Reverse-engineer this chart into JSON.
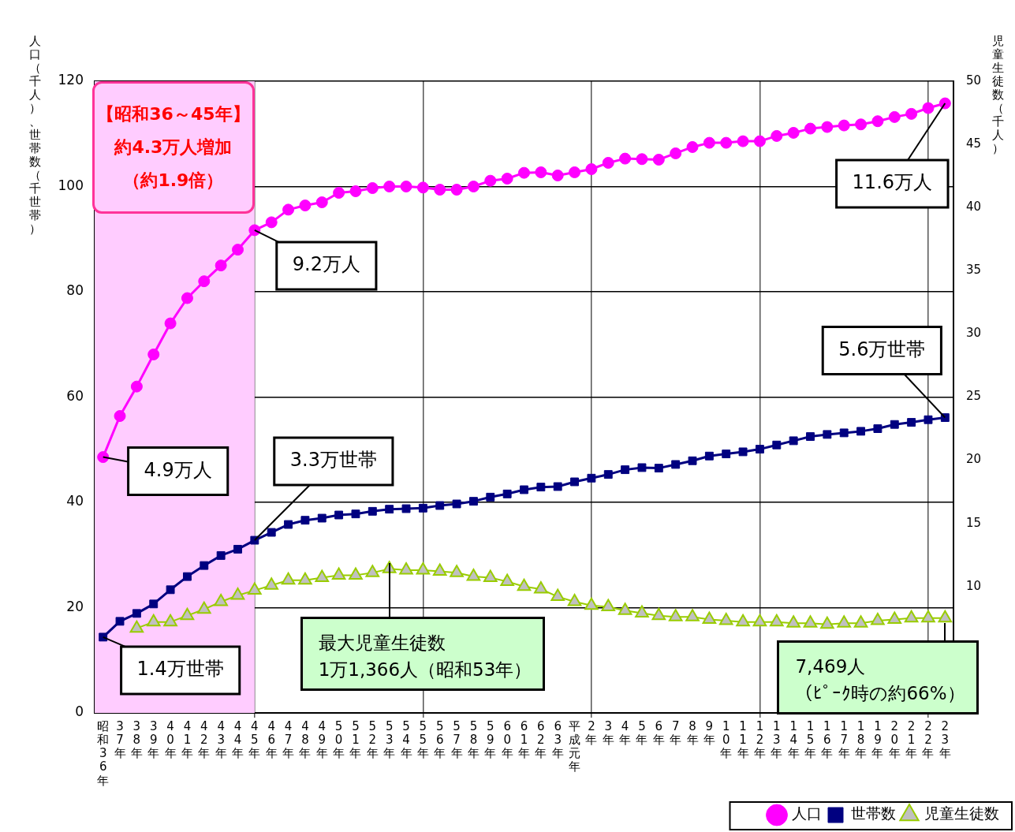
{
  "chart_data": {
    "type": "line",
    "ylabel": "人口（千人）、世帯数（千世帯）",
    "y2label": "児童生徒数（千人）",
    "categories": [
      "昭和36年",
      "37年",
      "38年",
      "39年",
      "40年",
      "41年",
      "42年",
      "43年",
      "44年",
      "45年",
      "46年",
      "47年",
      "48年",
      "49年",
      "50年",
      "51年",
      "52年",
      "53年",
      "54年",
      "55年",
      "56年",
      "57年",
      "58年",
      "59年",
      "60年",
      "61年",
      "62年",
      "63年",
      "平成元年",
      "2年",
      "3年",
      "4年",
      "5年",
      "6年",
      "7年",
      "8年",
      "9年",
      "10年",
      "11年",
      "12年",
      "13年",
      "14年",
      "15年",
      "16年",
      "17年",
      "18年",
      "19年",
      "20年",
      "21年",
      "22年",
      "23年"
    ],
    "series": [
      {
        "name": "人口",
        "color": "#ff00ff",
        "marker": "circle",
        "values": [
          48.6,
          56.4,
          62.0,
          68.1,
          74.0,
          78.8,
          82.0,
          85.0,
          88.0,
          91.7,
          93.2,
          95.6,
          96.4,
          97.0,
          98.8,
          99.1,
          99.7,
          100.0,
          100.0,
          99.8,
          99.4,
          99.4,
          100.0,
          101.1,
          101.5,
          102.6,
          102.7,
          102.1,
          102.7,
          103.3,
          104.5,
          105.3,
          105.2,
          105.1,
          106.3,
          107.5,
          108.3,
          108.3,
          108.6,
          108.6,
          109.6,
          110.2,
          111.0,
          111.3,
          111.6,
          111.8,
          112.4,
          113.2,
          113.8,
          114.9,
          115.8
        ]
      },
      {
        "name": "世帯数",
        "color": "#000080",
        "marker": "square",
        "values": [
          14.4,
          17.4,
          18.9,
          20.7,
          23.4,
          25.9,
          28.0,
          29.9,
          31.1,
          32.8,
          34.3,
          35.8,
          36.6,
          37.0,
          37.6,
          37.8,
          38.3,
          38.7,
          38.8,
          38.9,
          39.4,
          39.7,
          40.2,
          41.0,
          41.6,
          42.4,
          42.9,
          43.0,
          43.9,
          44.6,
          45.3,
          46.2,
          46.6,
          46.5,
          47.2,
          47.9,
          48.8,
          49.2,
          49.6,
          50.1,
          50.9,
          51.7,
          52.5,
          52.9,
          53.2,
          53.5,
          54.0,
          54.8,
          55.2,
          55.7,
          56.1
        ]
      },
      {
        "name": "児童生徒数",
        "color": "#99cc00",
        "marker": "triangle",
        "axis": "y2",
        "values": [
          null,
          null,
          6.7,
          7.2,
          7.2,
          7.7,
          8.2,
          8.8,
          9.3,
          9.7,
          10.1,
          10.5,
          10.5,
          10.7,
          10.9,
          10.9,
          11.1,
          11.4,
          11.3,
          11.3,
          11.2,
          11.1,
          10.8,
          10.7,
          10.4,
          10.0,
          9.8,
          9.2,
          8.8,
          8.5,
          8.4,
          8.1,
          7.9,
          7.7,
          7.6,
          7.6,
          7.4,
          7.3,
          7.2,
          7.2,
          7.2,
          7.1,
          7.1,
          7.0,
          7.1,
          7.1,
          7.3,
          7.4,
          7.5,
          7.5,
          7.5
        ]
      }
    ],
    "ylim": [
      0,
      120
    ],
    "yticks": [
      0,
      20,
      40,
      60,
      80,
      100,
      120
    ],
    "y2lim": [
      0,
      50
    ],
    "y2ticks": [
      10,
      15,
      20,
      25,
      30,
      35,
      40,
      45,
      50
    ],
    "grid": true,
    "legend": "bottom right",
    "bands": [
      {
        "axis": "x",
        "from": "昭和36年",
        "to": "45年",
        "color": "#ffccff",
        "label": "【昭和36～45年】約4.3万人増加（約1.9倍）"
      }
    ],
    "annotations": [
      {
        "text": "4.9万人",
        "x": "昭和36年",
        "y": 48.6
      },
      {
        "text": "9.2万人",
        "x": "45年",
        "y": 91.7
      },
      {
        "text": "11.6万人",
        "x": "23年",
        "y": 115.8
      },
      {
        "text": "1.4万世帯",
        "x": "昭和36年",
        "y": 14.4
      },
      {
        "text": "3.3万世帯",
        "x": "45年",
        "y": 32.8
      },
      {
        "text": "5.6万世帯",
        "x": "23年",
        "y": 56.1
      },
      "最大児童生徒数\n1万1,366人（昭和53年）",
      "7,469人（ﾋﾟｰｸ時の約66%）"
    ]
  }
}
